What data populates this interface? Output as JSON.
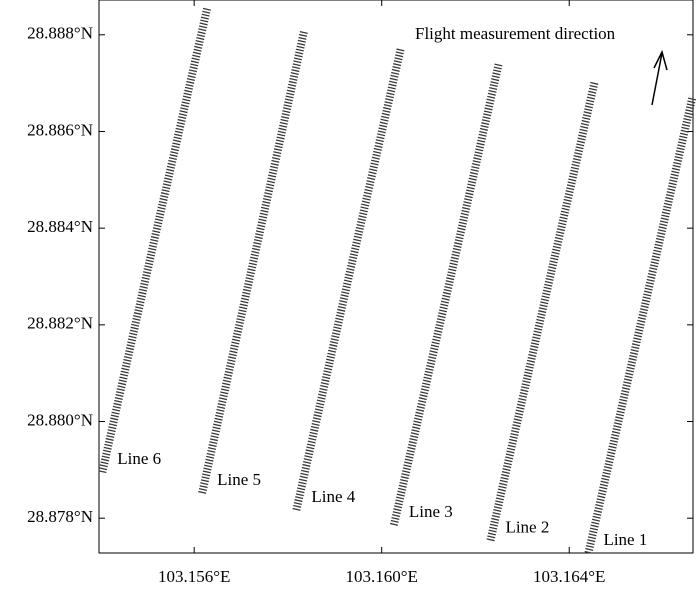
{
  "chart_data": {
    "type": "line",
    "annotation": "Flight measurement direction",
    "xlim": [
      103.15397,
      103.16664
    ],
    "ylim": [
      28.87728,
      28.88872
    ],
    "xticks": [
      {
        "value": 103.156,
        "label": "103.156°E"
      },
      {
        "value": 103.16,
        "label": "103.160°E"
      },
      {
        "value": 103.164,
        "label": "103.164°E"
      }
    ],
    "yticks": [
      {
        "value": 28.878,
        "label": "28.878°N"
      },
      {
        "value": 28.88,
        "label": "28.880°N"
      },
      {
        "value": 28.882,
        "label": "28.882°N"
      },
      {
        "value": 28.884,
        "label": "28.884°N"
      },
      {
        "value": 28.886,
        "label": "28.886°N"
      },
      {
        "value": 28.888,
        "label": "28.888°N"
      }
    ],
    "grid": false,
    "series": [
      {
        "name": "Line 1",
        "color": "#3a3a3a",
        "x": [
          103.16441,
          103.16552,
          103.16663
        ],
        "values": [
          28.87728,
          28.882,
          28.88672
        ]
      },
      {
        "name": "Line 2",
        "color": "#3a3a3a",
        "x": [
          103.16232,
          103.16343,
          103.16454
        ],
        "values": [
          28.87754,
          28.8823,
          28.88702
        ]
      },
      {
        "name": "Line 3",
        "color": "#3a3a3a",
        "x": [
          103.16026,
          103.16138,
          103.1625
        ],
        "values": [
          28.87786,
          28.8826,
          28.88742
        ]
      },
      {
        "name": "Line 4",
        "color": "#3a3a3a",
        "x": [
          103.15818,
          103.1593,
          103.16041
        ],
        "values": [
          28.87817,
          28.883,
          28.88773
        ]
      },
      {
        "name": "Line 5",
        "color": "#3a3a3a",
        "x": [
          103.15617,
          103.15726,
          103.15834
        ],
        "values": [
          28.87852,
          28.8833,
          28.88806
        ]
      },
      {
        "name": "Line 6",
        "color": "#3a3a3a",
        "x": [
          103.15404,
          103.15516,
          103.15628
        ],
        "values": [
          28.87895,
          28.8838,
          28.88856
        ]
      }
    ]
  }
}
